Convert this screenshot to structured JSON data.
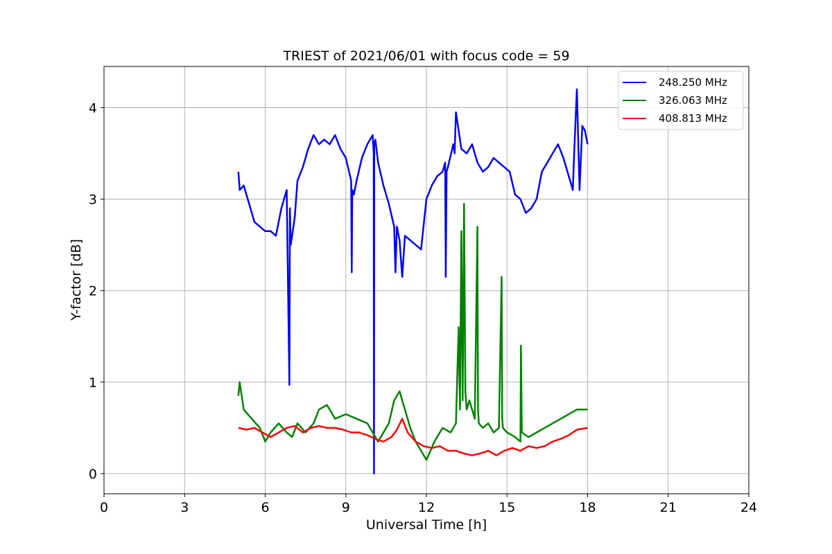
{
  "chart_data": {
    "type": "line",
    "title": "TRIEST of 2021/06/01 with focus code = 59",
    "xlabel": "Universal Time [h]",
    "ylabel": "Y-factor [dB]",
    "xlim": [
      0,
      24
    ],
    "ylim": [
      -0.22,
      4.45
    ],
    "xticks": [
      0,
      3,
      6,
      9,
      12,
      15,
      18,
      21,
      24
    ],
    "yticks": [
      0,
      1,
      2,
      3,
      4
    ],
    "grid": true,
    "legend_position": "top-right",
    "series": [
      {
        "name": "248.250 MHz",
        "color": "#0000ff",
        "x": [
          5.0,
          5.05,
          5.2,
          5.4,
          5.6,
          5.8,
          6.0,
          6.2,
          6.4,
          6.6,
          6.8,
          6.9,
          6.92,
          6.95,
          7.0,
          7.1,
          7.2,
          7.4,
          7.6,
          7.8,
          8.0,
          8.2,
          8.4,
          8.6,
          8.8,
          9.0,
          9.2,
          9.22,
          9.24,
          9.3,
          9.4,
          9.6,
          9.8,
          10.0,
          10.04,
          10.05,
          10.06,
          10.1,
          10.2,
          10.4,
          10.6,
          10.8,
          10.85,
          10.9,
          11.0,
          11.1,
          11.2,
          11.4,
          11.6,
          11.8,
          12.0,
          12.2,
          12.4,
          12.6,
          12.7,
          12.72,
          12.75,
          12.8,
          13.0,
          13.05,
          13.1,
          13.3,
          13.5,
          13.7,
          13.9,
          14.1,
          14.3,
          14.5,
          14.7,
          14.9,
          15.1,
          15.3,
          15.5,
          15.7,
          15.9,
          16.1,
          16.3,
          16.5,
          16.7,
          16.9,
          17.1,
          17.3,
          17.45,
          17.5,
          17.6,
          17.7,
          17.8,
          17.9,
          18.0
        ],
        "values": [
          3.3,
          3.1,
          3.15,
          2.95,
          2.75,
          2.7,
          2.65,
          2.65,
          2.6,
          2.9,
          3.1,
          0.97,
          2.9,
          2.5,
          2.6,
          2.8,
          3.2,
          3.35,
          3.55,
          3.7,
          3.6,
          3.65,
          3.6,
          3.7,
          3.55,
          3.45,
          3.2,
          2.2,
          3.1,
          3.05,
          3.2,
          3.45,
          3.6,
          3.7,
          3.5,
          0.0,
          3.6,
          3.65,
          3.4,
          3.15,
          2.95,
          2.7,
          2.2,
          2.7,
          2.55,
          2.15,
          2.6,
          2.55,
          2.5,
          2.45,
          3.0,
          3.15,
          3.25,
          3.3,
          3.4,
          2.15,
          3.3,
          3.35,
          3.6,
          3.5,
          3.95,
          3.55,
          3.5,
          3.6,
          3.4,
          3.3,
          3.35,
          3.45,
          3.4,
          3.35,
          3.3,
          3.05,
          3.0,
          2.85,
          2.9,
          3.0,
          3.3,
          3.4,
          3.5,
          3.6,
          3.45,
          3.25,
          3.1,
          3.5,
          4.2,
          3.1,
          3.8,
          3.75,
          3.6
        ]
      },
      {
        "name": "326.063 MHz",
        "color": "#008000",
        "x": [
          5.0,
          5.05,
          5.2,
          5.5,
          5.8,
          6.0,
          6.2,
          6.5,
          6.8,
          7.0,
          7.2,
          7.5,
          7.8,
          8.0,
          8.3,
          8.6,
          9.0,
          9.4,
          9.8,
          10.2,
          10.6,
          10.8,
          11.0,
          11.2,
          11.4,
          11.6,
          11.8,
          12.0,
          12.3,
          12.6,
          12.9,
          13.1,
          13.2,
          13.25,
          13.3,
          13.35,
          13.4,
          13.45,
          13.5,
          13.6,
          13.8,
          13.9,
          13.92,
          13.95,
          14.1,
          14.3,
          14.5,
          14.7,
          14.8,
          14.82,
          14.85,
          15.0,
          15.3,
          15.5,
          15.52,
          15.55,
          15.8,
          16.1,
          16.4,
          16.7,
          17.0,
          17.3,
          17.6,
          18.0
        ],
        "values": [
          0.85,
          1.0,
          0.7,
          0.6,
          0.5,
          0.35,
          0.45,
          0.55,
          0.45,
          0.4,
          0.55,
          0.45,
          0.55,
          0.7,
          0.75,
          0.6,
          0.65,
          0.6,
          0.55,
          0.35,
          0.55,
          0.8,
          0.9,
          0.7,
          0.5,
          0.35,
          0.25,
          0.15,
          0.35,
          0.5,
          0.45,
          0.55,
          1.6,
          0.7,
          2.65,
          0.8,
          2.95,
          0.9,
          0.7,
          0.8,
          0.6,
          2.7,
          0.7,
          0.55,
          0.5,
          0.55,
          0.45,
          0.5,
          2.15,
          0.6,
          0.5,
          0.45,
          0.4,
          0.35,
          1.4,
          0.45,
          0.4,
          0.45,
          0.5,
          0.55,
          0.6,
          0.65,
          0.7,
          0.7
        ]
      },
      {
        "name": "408.813 MHz",
        "color": "#ff0000",
        "x": [
          5.0,
          5.3,
          5.6,
          5.9,
          6.2,
          6.5,
          6.8,
          7.1,
          7.4,
          7.7,
          8.0,
          8.3,
          8.6,
          8.9,
          9.2,
          9.5,
          9.8,
          10.1,
          10.4,
          10.7,
          10.9,
          11.1,
          11.3,
          11.6,
          11.9,
          12.2,
          12.5,
          12.8,
          13.1,
          13.4,
          13.7,
          14.0,
          14.3,
          14.6,
          14.9,
          15.2,
          15.5,
          15.8,
          16.1,
          16.4,
          16.7,
          17.0,
          17.3,
          17.6,
          18.0
        ],
        "values": [
          0.5,
          0.48,
          0.5,
          0.45,
          0.4,
          0.45,
          0.5,
          0.52,
          0.45,
          0.5,
          0.52,
          0.5,
          0.5,
          0.48,
          0.45,
          0.45,
          0.42,
          0.38,
          0.35,
          0.4,
          0.48,
          0.6,
          0.45,
          0.35,
          0.3,
          0.28,
          0.3,
          0.25,
          0.25,
          0.22,
          0.2,
          0.22,
          0.25,
          0.2,
          0.25,
          0.28,
          0.25,
          0.3,
          0.28,
          0.3,
          0.35,
          0.38,
          0.42,
          0.48,
          0.5
        ]
      }
    ]
  }
}
